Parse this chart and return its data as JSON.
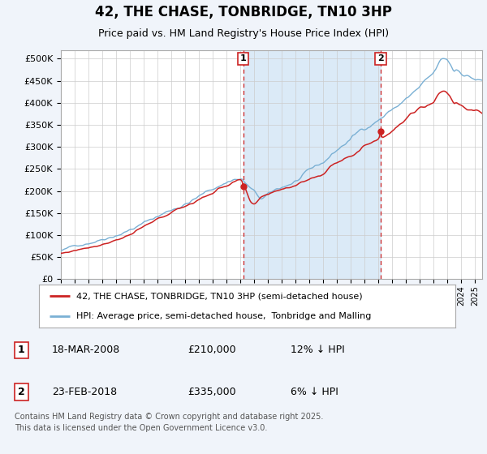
{
  "title": "42, THE CHASE, TONBRIDGE, TN10 3HP",
  "subtitle": "Price paid vs. HM Land Registry's House Price Index (HPI)",
  "ylabel_values": [
    0,
    50000,
    100000,
    150000,
    200000,
    250000,
    300000,
    350000,
    400000,
    450000,
    500000
  ],
  "ylim": [
    0,
    520000
  ],
  "xlim_start": 1995.0,
  "xlim_end": 2025.5,
  "sale1_date": 2008.21,
  "sale1_price": 210000,
  "sale2_date": 2018.15,
  "sale2_price": 335000,
  "sale1_text": "18-MAR-2008",
  "sale1_amt": "£210,000",
  "sale1_pct": "12% ↓ HPI",
  "sale2_text": "23-FEB-2018",
  "sale2_amt": "£335,000",
  "sale2_pct": "6% ↓ HPI",
  "line_red": "#cc2222",
  "line_blue": "#7ab0d4",
  "shade_color": "#dbeaf7",
  "vline_color": "#cc2222",
  "legend1_label": "42, THE CHASE, TONBRIDGE, TN10 3HP (semi-detached house)",
  "legend2_label": "HPI: Average price, semi-detached house,  Tonbridge and Malling",
  "footer": "Contains HM Land Registry data © Crown copyright and database right 2025.\nThis data is licensed under the Open Government Licence v3.0.",
  "bg_color": "#f0f4fa"
}
